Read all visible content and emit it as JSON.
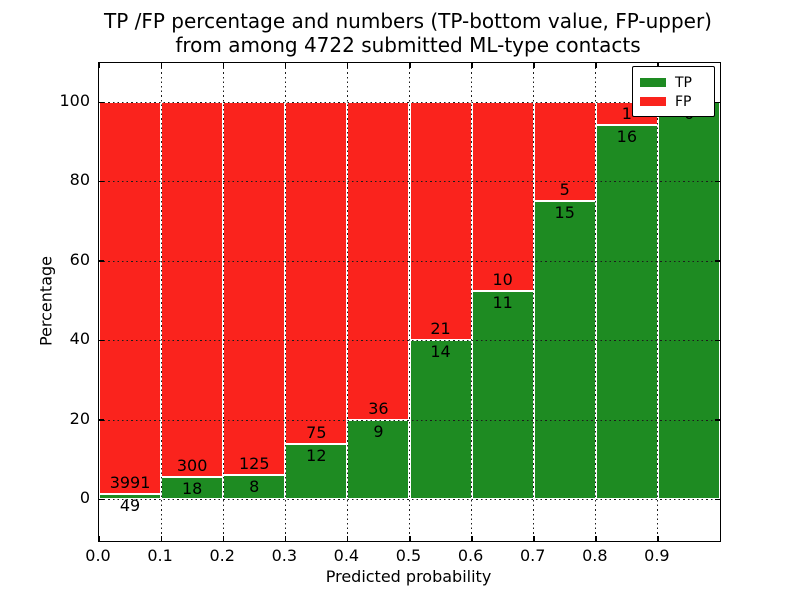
{
  "figure": {
    "title_line1": "TP /FP percentage and numbers (TP-bottom value, FP-upper)",
    "title_line2": "from among 4722 submitted ML-type contacts",
    "xlabel": "Predicted probability",
    "ylabel": "Percentage"
  },
  "legend": {
    "items": [
      {
        "label": "TP",
        "color": "#1e8b22"
      },
      {
        "label": "FP",
        "color": "#fa231d"
      }
    ]
  },
  "chart_data": {
    "type": "bar",
    "stacked": true,
    "title": "TP /FP percentage and numbers (TP-bottom value, FP-upper) from among 4722 submitted ML-type contacts",
    "xlabel": "Predicted probability",
    "ylabel": "Percentage",
    "total_contacts": 4722,
    "categories": [
      "0.0-0.1",
      "0.1-0.2",
      "0.2-0.3",
      "0.3-0.4",
      "0.4-0.5",
      "0.5-0.6",
      "0.6-0.7",
      "0.7-0.8",
      "0.8-0.9",
      "0.9-1.0"
    ],
    "bin_edges": [
      0.0,
      0.1,
      0.2,
      0.3,
      0.4,
      0.5,
      0.6,
      0.7,
      0.8,
      0.9,
      1.0
    ],
    "series": [
      {
        "name": "TP",
        "color": "#1e8b22",
        "counts": [
          49,
          18,
          8,
          12,
          9,
          14,
          11,
          15,
          16,
          6
        ],
        "percent": [
          1.21,
          5.66,
          6.02,
          13.79,
          20.0,
          40.0,
          52.38,
          75.0,
          94.12,
          100.0
        ]
      },
      {
        "name": "FP",
        "color": "#fa231d",
        "counts": [
          3991,
          300,
          125,
          75,
          36,
          21,
          10,
          5,
          1,
          0
        ],
        "percent": [
          98.79,
          94.34,
          93.98,
          86.21,
          80.0,
          60.0,
          47.62,
          25.0,
          5.88,
          0.0
        ]
      }
    ],
    "xticks": [
      "0.0",
      "0.1",
      "0.2",
      "0.3",
      "0.4",
      "0.5",
      "0.6",
      "0.7",
      "0.8",
      "0.9"
    ],
    "yticks": [
      0,
      20,
      40,
      60,
      80,
      100
    ],
    "xlim": [
      0.0,
      1.0
    ],
    "ylim": [
      -10.6,
      109.8
    ],
    "grid": "dotted",
    "legend_position": "upper right"
  }
}
